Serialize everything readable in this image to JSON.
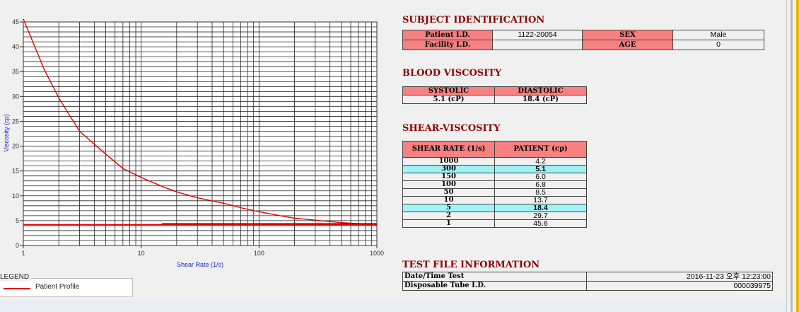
{
  "chart_data": {
    "type": "line",
    "xlabel": "Shear Rate (1/s)",
    "ylabel": "Viscosity (cp)",
    "x_scale": "log",
    "xlim": [
      1,
      1000
    ],
    "ylim": [
      0,
      45
    ],
    "x_ticks": [
      "1",
      "10",
      "100",
      "1000"
    ],
    "y_ticks": [
      "0",
      "5",
      "10",
      "15",
      "20",
      "25",
      "30",
      "35",
      "40",
      "45"
    ],
    "grid": true,
    "series": [
      {
        "name": "Patient Profile",
        "color": "#e00000",
        "x": [
          1,
          1.5,
          2,
          3,
          5,
          7,
          10,
          15,
          20,
          30,
          50,
          70,
          100,
          150,
          200,
          300,
          500,
          700,
          1000
        ],
        "y": [
          45.6,
          35.5,
          29.7,
          23.0,
          18.4,
          15.5,
          13.7,
          11.9,
          10.8,
          9.6,
          8.5,
          7.6,
          6.8,
          6.0,
          5.5,
          5.1,
          4.6,
          4.4,
          4.2
        ]
      },
      {
        "color": "#e00000",
        "x": [
          1,
          1000
        ],
        "y": [
          4.2,
          4.2
        ]
      },
      {
        "color": "#8b0000",
        "x": [
          15,
          1000
        ],
        "y": [
          4.4,
          4.4
        ]
      }
    ]
  },
  "legend": {
    "title": "LEGEND",
    "entries": [
      "Patient Profile"
    ]
  },
  "subject": {
    "title": "SUBJECT IDENTIFICATION",
    "patient_id_label": "Patient I.D.",
    "patient_id": "1122-20054",
    "sex_label": "SEX",
    "sex": "Male",
    "facility_id_label": "Facility I.D.",
    "facility_id": "",
    "age_label": "AGE",
    "age": "0"
  },
  "blood_viscosity": {
    "title": "BLOOD VISCOSITY",
    "systolic_label": "SYSTOLIC",
    "diastolic_label": "DIASTOLIC",
    "systolic": "5.1 (cP)",
    "diastolic": "18.4 (cP)"
  },
  "shear_viscosity": {
    "title": "SHEAR-VISCOSITY",
    "col_rate": "SHEAR RATE (1/s)",
    "col_patient": "PATIENT (cp)",
    "rows": [
      {
        "rate": "1000",
        "value": "4.2"
      },
      {
        "rate": "300",
        "value": "5.1"
      },
      {
        "rate": "150",
        "value": "6.0"
      },
      {
        "rate": "100",
        "value": "6.8"
      },
      {
        "rate": "50",
        "value": "8.5"
      },
      {
        "rate": "10",
        "value": "13.7"
      },
      {
        "rate": "5",
        "value": "18.4"
      },
      {
        "rate": "2",
        "value": "29.7"
      },
      {
        "rate": "1",
        "value": "45.6"
      }
    ]
  },
  "test_file": {
    "title": "TEST FILE INFORMATION",
    "datetime_label": "Date/Time Test",
    "datetime": "2016-11-23  오후 12:23:00",
    "tube_label": "Disposable Tube I.D.",
    "tube_id": "000039975"
  }
}
